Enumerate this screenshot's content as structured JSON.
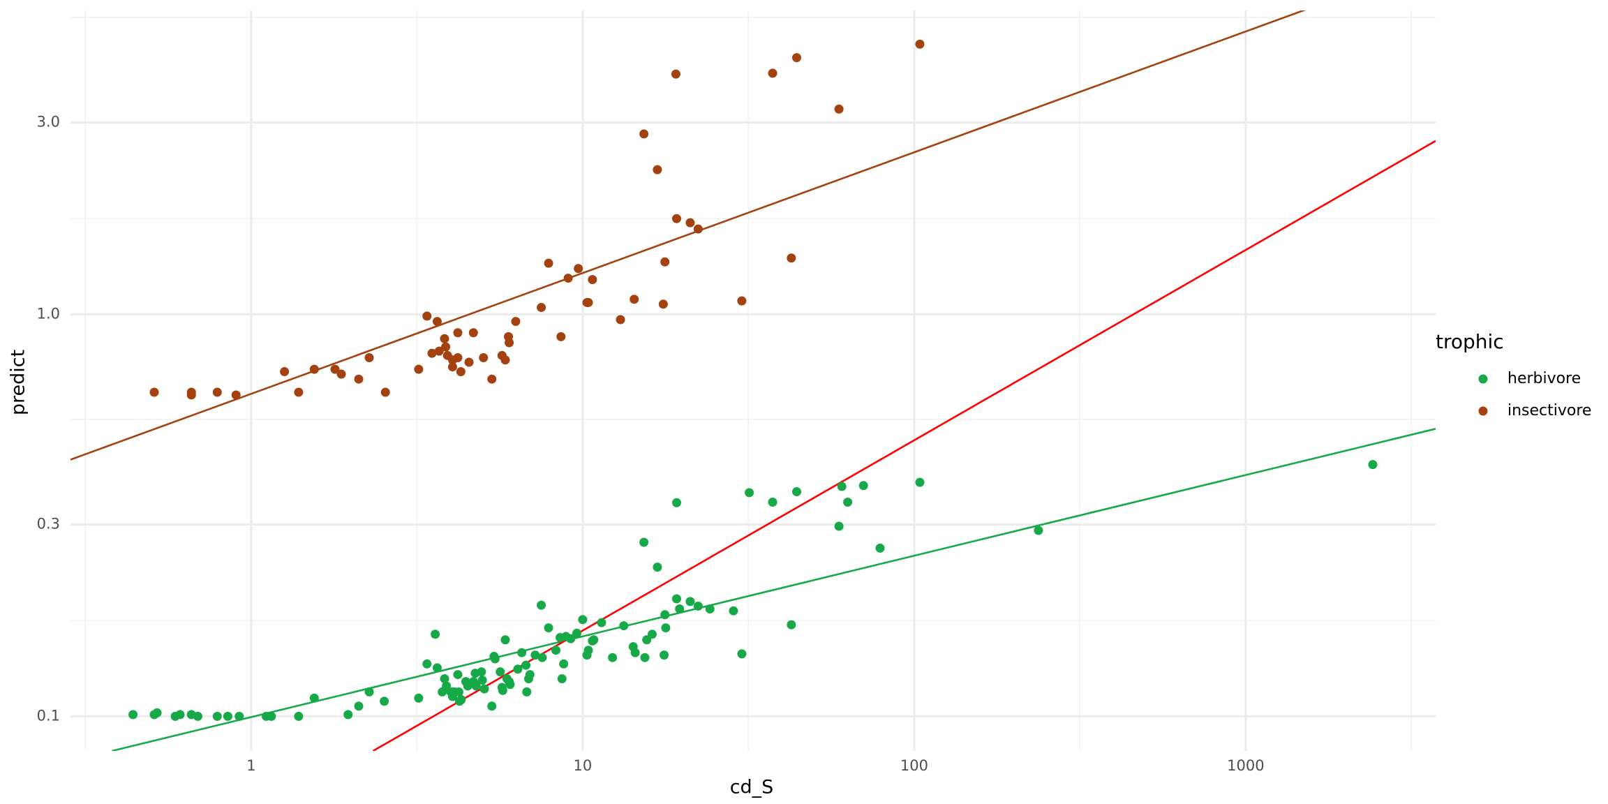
{
  "chart_data": {
    "type": "scatter",
    "x_label": "cd_S",
    "y_label": "predict",
    "legend_title": "trophic",
    "legend_position": "right",
    "xscale": "log",
    "yscale": "log",
    "grid": true,
    "xlim": [
      0.285,
      3740
    ],
    "ylim": [
      0.082,
      5.7
    ],
    "xticks": [
      1,
      10,
      100,
      1000
    ],
    "yticks": [
      0.1,
      0.3,
      {
        "value": 1,
        "label": "1.0"
      },
      {
        "value": 3,
        "label": "3.0"
      }
    ],
    "xminor": [
      0.316,
      3.16,
      31.6,
      316,
      3162
    ],
    "yminor": [
      0.173,
      0.548,
      1.73,
      5.48
    ],
    "series": [
      {
        "name": "herbivore",
        "color": "#17a948",
        "x": [
          0.44,
          0.51,
          0.52,
          0.59,
          0.61,
          0.66,
          0.69,
          0.79,
          0.85,
          0.92,
          1.11,
          1.15,
          1.39,
          1.55,
          1.96,
          2.11,
          2.27,
          2.52,
          3.2,
          3.39,
          3.59,
          3.64,
          3.77,
          3.83,
          3.88,
          4.0,
          4.05,
          4.1,
          4.2,
          4.23,
          4.25,
          4.3,
          4.44,
          4.5,
          4.68,
          4.74,
          4.77,
          4.95,
          4.98,
          5.05,
          5.32,
          5.4,
          5.44,
          5.64,
          5.71,
          5.74,
          5.84,
          5.91,
          6.0,
          6.04,
          6.37,
          6.55,
          6.74,
          6.78,
          6.87,
          6.93,
          7.19,
          7.5,
          7.55,
          7.89,
          8.3,
          8.55,
          8.66,
          8.76,
          8.9,
          9.2,
          9.6,
          10.0,
          10.3,
          10.4,
          10.7,
          10.8,
          11.4,
          12.3,
          13.3,
          14.2,
          14.4,
          15.3,
          15.4,
          15.6,
          16.2,
          16.8,
          17.6,
          17.7,
          17.8,
          19.2,
          19.2,
          19.6,
          21.1,
          22.3,
          24.2,
          28.5,
          30.2,
          31.8,
          37.4,
          42.6,
          44.2,
          59.3,
          60.5,
          63,
          70.3,
          78.9,
          104,
          237,
          2417
        ],
        "values": [
          0.101,
          0.101,
          0.102,
          0.1,
          0.101,
          0.101,
          0.1,
          0.1,
          0.1,
          0.1,
          0.1,
          0.1,
          0.1,
          0.111,
          0.101,
          0.106,
          0.115,
          0.109,
          0.111,
          0.135,
          0.16,
          0.132,
          0.115,
          0.124,
          0.119,
          0.115,
          0.112,
          0.115,
          0.127,
          0.115,
          0.109,
          0.11,
          0.122,
          0.119,
          0.122,
          0.128,
          0.119,
          0.129,
          0.123,
          0.117,
          0.106,
          0.141,
          0.139,
          0.129,
          0.118,
          0.116,
          0.155,
          0.124,
          0.122,
          0.12,
          0.131,
          0.144,
          0.134,
          0.115,
          0.124,
          0.127,
          0.142,
          0.189,
          0.14,
          0.166,
          0.146,
          0.157,
          0.124,
          0.135,
          0.158,
          0.156,
          0.161,
          0.174,
          0.142,
          0.146,
          0.154,
          0.155,
          0.171,
          0.14,
          0.168,
          0.149,
          0.144,
          0.271,
          0.14,
          0.155,
          0.16,
          0.235,
          0.142,
          0.179,
          0.166,
          0.196,
          0.34,
          0.185,
          0.193,
          0.188,
          0.185,
          0.183,
          0.143,
          0.36,
          0.341,
          0.169,
          0.362,
          0.297,
          0.373,
          0.341,
          0.375,
          0.262,
          0.382,
          0.29,
          0.423
        ]
      },
      {
        "name": "insectivore",
        "color": "#a3410f",
        "x": [
          0.51,
          0.66,
          0.66,
          0.79,
          0.9,
          1.26,
          1.39,
          1.55,
          1.79,
          1.87,
          2.11,
          2.27,
          2.54,
          3.2,
          3.39,
          3.51,
          3.64,
          3.69,
          3.83,
          3.86,
          3.91,
          4.05,
          4.05,
          4.2,
          4.2,
          4.29,
          4.54,
          4.68,
          5.02,
          5.32,
          5.71,
          5.84,
          5.97,
          6.0,
          6.28,
          7.5,
          7.89,
          8.6,
          9.04,
          9.7,
          10.3,
          10.4,
          10.7,
          13.0,
          14.3,
          15.3,
          16.8,
          17.5,
          17.7,
          19.1,
          19.2,
          21.1,
          22.3,
          30.2,
          37.4,
          42.6,
          44.2,
          59.3,
          104
        ],
        "values": [
          0.64,
          0.64,
          0.63,
          0.64,
          0.63,
          0.72,
          0.64,
          0.73,
          0.73,
          0.71,
          0.69,
          0.78,
          0.64,
          0.73,
          0.99,
          0.8,
          0.96,
          0.81,
          0.87,
          0.83,
          0.79,
          0.77,
          0.74,
          0.78,
          0.9,
          0.72,
          0.76,
          0.9,
          0.78,
          0.69,
          0.79,
          0.77,
          0.88,
          0.85,
          0.96,
          1.04,
          1.34,
          0.88,
          1.23,
          1.3,
          1.07,
          1.07,
          1.22,
          0.97,
          1.09,
          2.81,
          2.29,
          1.06,
          1.35,
          3.96,
          1.73,
          1.69,
          1.63,
          1.08,
          3.98,
          1.38,
          4.35,
          3.24,
          4.7
        ]
      }
    ],
    "lines": [
      {
        "color": "#a3410f",
        "x": [
          0.285,
          1528
        ],
        "values": [
          0.435,
          5.74
        ]
      },
      {
        "color": "#17a948",
        "x": [
          0.38,
          3740
        ],
        "values": [
          0.082,
          0.519
        ]
      },
      {
        "color": "#ff0000",
        "x": [
          2.33,
          3740
        ],
        "values": [
          0.082,
          2.7
        ]
      }
    ]
  }
}
